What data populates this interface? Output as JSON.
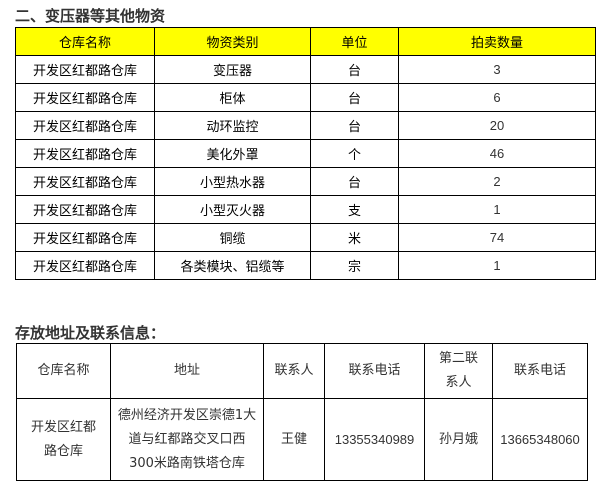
{
  "section1": {
    "title": "二、变压器等其他物资",
    "headers": [
      "仓库名称",
      "物资类别",
      "单位",
      "拍卖数量"
    ],
    "rows": [
      [
        "开发区红都路仓库",
        "变压器",
        "台",
        "3"
      ],
      [
        "开发区红都路仓库",
        "柜体",
        "台",
        "6"
      ],
      [
        "开发区红都路仓库",
        "动环监控",
        "台",
        "20"
      ],
      [
        "开发区红都路仓库",
        "美化外罩",
        "个",
        "46"
      ],
      [
        "开发区红都路仓库",
        "小型热水器",
        "台",
        "2"
      ],
      [
        "开发区红都路仓库",
        "小型灭火器",
        "支",
        "1"
      ],
      [
        "开发区红都路仓库",
        "铜缆",
        "米",
        "74"
      ],
      [
        "开发区红都路仓库",
        "各类模块、铝缆等",
        "宗",
        "1"
      ]
    ]
  },
  "section2": {
    "title": "存放地址及联系信息：",
    "headers": [
      "仓库名称",
      "地址",
      "联系人",
      "联系电话",
      "第二联系人",
      "联系电话"
    ],
    "row": {
      "warehouse": "开发区红都路仓库",
      "address": "德州经济开发区崇德1大道与红都路交叉口西300米路南铁塔仓库",
      "contact": "王健",
      "phone": "13355340989",
      "contact2": "孙月娥",
      "phone2": "13665348060"
    }
  },
  "colors": {
    "header_bg": "#ffff00"
  }
}
